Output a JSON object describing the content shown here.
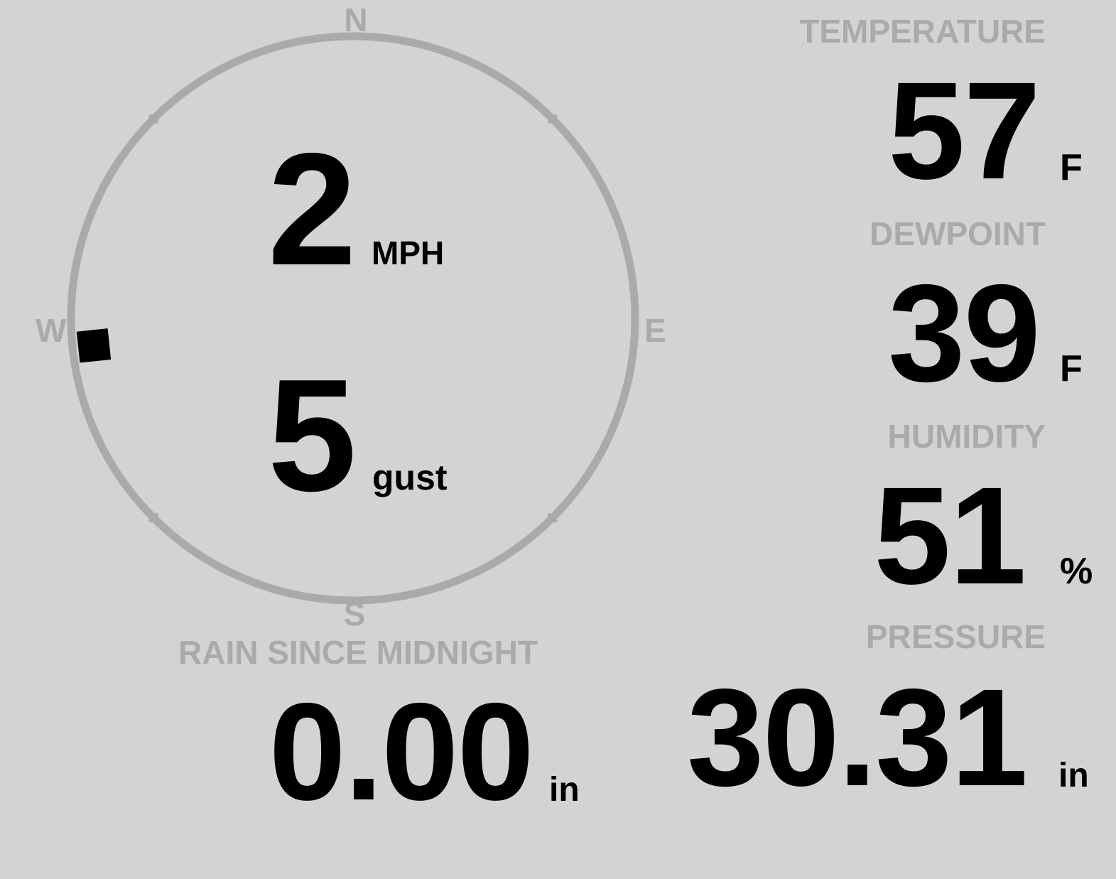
{
  "colors": {
    "background": "#d3d3d3",
    "label": "#aaaaaa",
    "value": "#000000",
    "compass_ring": "#aaaaaa"
  },
  "compass": {
    "north": "N",
    "south": "S",
    "east": "E",
    "west": "W",
    "wind_direction_deg": 264
  },
  "wind": {
    "speed": "2",
    "speed_unit": "MPH",
    "gust": "5",
    "gust_label": "gust"
  },
  "temperature": {
    "label": "TEMPERATURE",
    "value": "57",
    "unit": "F"
  },
  "dewpoint": {
    "label": "DEWPOINT",
    "value": "39",
    "unit": "F"
  },
  "humidity": {
    "label": "HUMIDITY",
    "value": "51",
    "unit": "%"
  },
  "rain": {
    "label": "RAIN SINCE MIDNIGHT",
    "value": "0.00",
    "unit": "in"
  },
  "pressure": {
    "label": "PRESSURE",
    "value": "30.31",
    "unit": "in"
  }
}
